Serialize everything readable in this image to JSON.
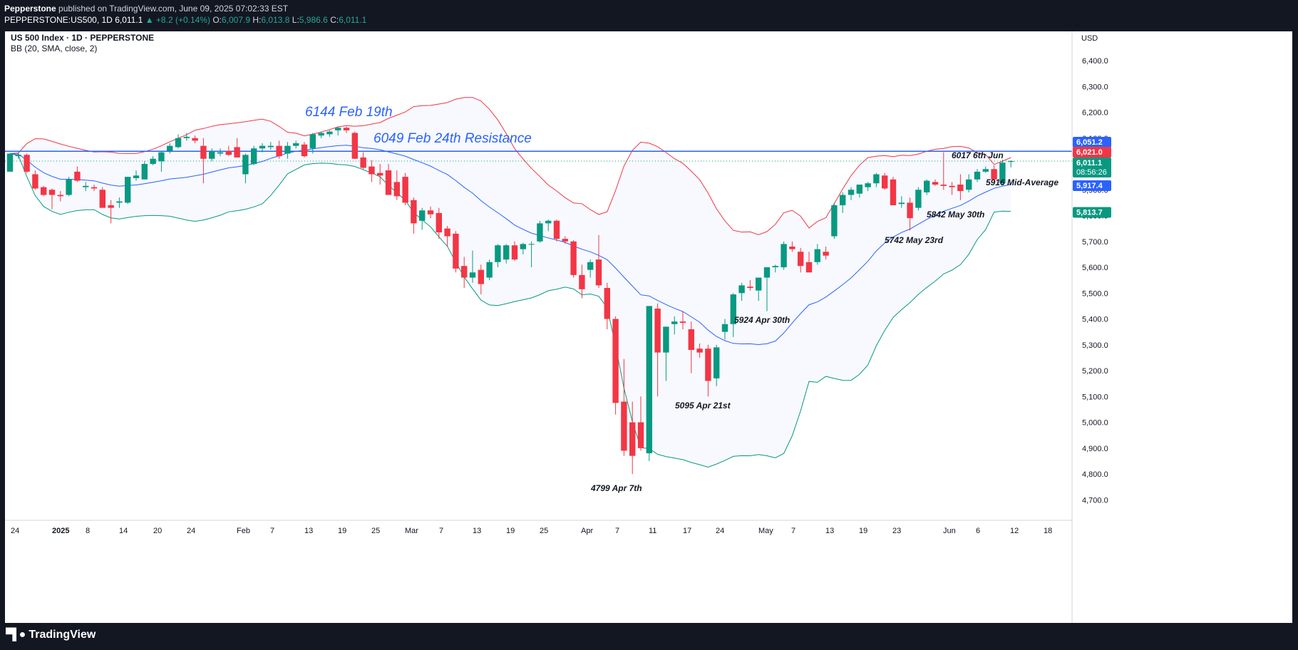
{
  "header": {
    "publisher": "Pepperstone",
    "published_text": "published on TradingView.com, June 09, 2025 07:02:33 EST",
    "symbol": "PEPPERSTONE:US500, 1D",
    "last": "6,011.1",
    "change": "+8.2 (+0.14%)",
    "o_label": "O:",
    "o": "6,007.9",
    "h_label": "H:",
    "h": "6,013.8",
    "l_label": "L:",
    "l": "5,986.6",
    "c_label": "C:",
    "c": "6,011.1"
  },
  "legend": {
    "title": "US 500 Index · 1D · PEPPERSTONE",
    "indicator": "BB (20, SMA, close, 2)"
  },
  "price_axis": {
    "currency": "USD",
    "ticks": [
      "6,400.0",
      "6,300.0",
      "6,200.0",
      "6,100.0",
      "6,000.0",
      "5,900.0",
      "5,800.0",
      "5,700.0",
      "5,600.0",
      "5,500.0",
      "5,400.0",
      "5,300.0",
      "5,200.0",
      "5,100.0",
      "5,000.0",
      "4,900.0",
      "4,800.0",
      "4,700.0"
    ]
  },
  "time_axis": {
    "labels": [
      "24",
      "2025",
      "8",
      "14",
      "20",
      "24",
      "Feb",
      "7",
      "13",
      "19",
      "25",
      "Mar",
      "7",
      "13",
      "19",
      "25",
      "Apr",
      "7",
      "11",
      "17",
      "24",
      "May",
      "7",
      "13",
      "19",
      "23",
      "Jun",
      "6",
      "12",
      "18"
    ]
  },
  "price_tags": [
    {
      "text": "6,051.2",
      "color": "#2962ff"
    },
    {
      "text": "6,021.0",
      "color": "#f23645"
    },
    {
      "text": "6,011.1",
      "color": "#089981",
      "sub": "08:56:26"
    },
    {
      "text": "5,917.4",
      "color": "#2962ff"
    },
    {
      "text": "5,813.7",
      "color": "#089981"
    }
  ],
  "annotations": {
    "feb19": "6144 Feb 19th",
    "resistance": "6049 Feb 24th Resistance",
    "jun6": "6017 6th Jun",
    "midavg": "5916 Mid-Average",
    "may30": "5842 May 30th",
    "may23": "5742 May 23rd",
    "apr30": "5924 Apr 30th",
    "apr21": "5095 Apr 21st",
    "apr7": "4799 Apr 7th"
  },
  "chart_data": {
    "type": "candlestick",
    "title": "US 500 Index · 1D · PEPPERSTONE",
    "ylim": [
      4640,
      6470
    ],
    "resistance_level": 6049,
    "series": [
      {
        "name": "BB (20, SMA, close, 2)",
        "values": "upper/basis/lower bands"
      }
    ],
    "candles": [
      {
        "o": 5970,
        "h": 6040,
        "l": 5970,
        "c": 6040
      },
      {
        "o": 6030,
        "h": 6045,
        "l": 6020,
        "c": 6035
      },
      {
        "o": 6035,
        "h": 6040,
        "l": 5965,
        "c": 5970
      },
      {
        "o": 5960,
        "h": 5975,
        "l": 5900,
        "c": 5905
      },
      {
        "o": 5910,
        "h": 5915,
        "l": 5875,
        "c": 5880
      },
      {
        "o": 5900,
        "h": 5905,
        "l": 5825,
        "c": 5880
      },
      {
        "o": 5880,
        "h": 5895,
        "l": 5855,
        "c": 5875
      },
      {
        "o": 5880,
        "h": 5950,
        "l": 5875,
        "c": 5940
      },
      {
        "o": 5970,
        "h": 5990,
        "l": 5930,
        "c": 5935
      },
      {
        "o": 5910,
        "h": 5930,
        "l": 5895,
        "c": 5915
      },
      {
        "o": 5910,
        "h": 5920,
        "l": 5895,
        "c": 5905
      },
      {
        "o": 5900,
        "h": 5910,
        "l": 5830,
        "c": 5830
      },
      {
        "o": 5840,
        "h": 5860,
        "l": 5770,
        "c": 5830
      },
      {
        "o": 5850,
        "h": 5870,
        "l": 5830,
        "c": 5855
      },
      {
        "o": 5850,
        "h": 5950,
        "l": 5845,
        "c": 5950
      },
      {
        "o": 5945,
        "h": 5975,
        "l": 5935,
        "c": 5955
      },
      {
        "o": 5940,
        "h": 6010,
        "l": 5940,
        "c": 6000
      },
      {
        "o": 6000,
        "h": 6030,
        "l": 5995,
        "c": 6020
      },
      {
        "o": 6010,
        "h": 6050,
        "l": 5970,
        "c": 6045
      },
      {
        "o": 6050,
        "h": 6080,
        "l": 6040,
        "c": 6070
      },
      {
        "o": 6065,
        "h": 6115,
        "l": 6060,
        "c": 6100
      },
      {
        "o": 6100,
        "h": 6120,
        "l": 6090,
        "c": 6105
      },
      {
        "o": 6100,
        "h": 6110,
        "l": 6080,
        "c": 6090
      },
      {
        "o": 6070,
        "h": 6100,
        "l": 5925,
        "c": 6020
      },
      {
        "o": 6020,
        "h": 6060,
        "l": 6010,
        "c": 6050
      },
      {
        "o": 6040,
        "h": 6060,
        "l": 6030,
        "c": 6045
      },
      {
        "o": 6050,
        "h": 6070,
        "l": 6030,
        "c": 6035
      },
      {
        "o": 6065,
        "h": 6100,
        "l": 6030,
        "c": 6025
      },
      {
        "o": 5960,
        "h": 6040,
        "l": 5925,
        "c": 6035
      },
      {
        "o": 6000,
        "h": 6070,
        "l": 5995,
        "c": 6060
      },
      {
        "o": 6060,
        "h": 6080,
        "l": 6045,
        "c": 6070
      },
      {
        "o": 6065,
        "h": 6085,
        "l": 6055,
        "c": 6070
      },
      {
        "o": 6070,
        "h": 6090,
        "l": 6020,
        "c": 6030
      },
      {
        "o": 6040,
        "h": 6085,
        "l": 6020,
        "c": 6070
      },
      {
        "o": 6070,
        "h": 6090,
        "l": 6060,
        "c": 6080
      },
      {
        "o": 6075,
        "h": 6085,
        "l": 6025,
        "c": 6030
      },
      {
        "o": 6060,
        "h": 6120,
        "l": 6040,
        "c": 6115
      },
      {
        "o": 6110,
        "h": 6125,
        "l": 6100,
        "c": 6120
      },
      {
        "o": 6115,
        "h": 6130,
        "l": 6105,
        "c": 6125
      },
      {
        "o": 6130,
        "h": 6144,
        "l": 6110,
        "c": 6140
      },
      {
        "o": 6140,
        "h": 6145,
        "l": 6120,
        "c": 6130
      },
      {
        "o": 6120,
        "h": 6125,
        "l": 6020,
        "c": 6020
      },
      {
        "o": 6025,
        "h": 6045,
        "l": 5980,
        "c": 5985
      },
      {
        "o": 5990,
        "h": 6015,
        "l": 5930,
        "c": 5960
      },
      {
        "o": 5965,
        "h": 6000,
        "l": 5920,
        "c": 5955
      },
      {
        "o": 5975,
        "h": 6000,
        "l": 5880,
        "c": 5880
      },
      {
        "o": 5930,
        "h": 5975,
        "l": 5860,
        "c": 5875
      },
      {
        "o": 5950,
        "h": 5965,
        "l": 5840,
        "c": 5850
      },
      {
        "o": 5860,
        "h": 5870,
        "l": 5730,
        "c": 5770
      },
      {
        "o": 5780,
        "h": 5830,
        "l": 5745,
        "c": 5820
      },
      {
        "o": 5820,
        "h": 5835,
        "l": 5790,
        "c": 5805
      },
      {
        "o": 5810,
        "h": 5830,
        "l": 5710,
        "c": 5735
      },
      {
        "o": 5750,
        "h": 5760,
        "l": 5680,
        "c": 5720
      },
      {
        "o": 5730,
        "h": 5740,
        "l": 5580,
        "c": 5595
      },
      {
        "o": 5605,
        "h": 5640,
        "l": 5520,
        "c": 5560
      },
      {
        "o": 5560,
        "h": 5665,
        "l": 5540,
        "c": 5580
      },
      {
        "o": 5590,
        "h": 5610,
        "l": 5495,
        "c": 5535
      },
      {
        "o": 5560,
        "h": 5630,
        "l": 5550,
        "c": 5620
      },
      {
        "o": 5620,
        "h": 5690,
        "l": 5600,
        "c": 5685
      },
      {
        "o": 5630,
        "h": 5690,
        "l": 5615,
        "c": 5685
      },
      {
        "o": 5685,
        "h": 5700,
        "l": 5625,
        "c": 5630
      },
      {
        "o": 5670,
        "h": 5695,
        "l": 5650,
        "c": 5690
      },
      {
        "o": 5690,
        "h": 5700,
        "l": 5600,
        "c": 5690
      },
      {
        "o": 5700,
        "h": 5780,
        "l": 5695,
        "c": 5770
      },
      {
        "o": 5770,
        "h": 5785,
        "l": 5740,
        "c": 5780
      },
      {
        "o": 5780,
        "h": 5785,
        "l": 5700,
        "c": 5710
      },
      {
        "o": 5710,
        "h": 5720,
        "l": 5690,
        "c": 5700
      },
      {
        "o": 5700,
        "h": 5705,
        "l": 5560,
        "c": 5570
      },
      {
        "o": 5570,
        "h": 5610,
        "l": 5480,
        "c": 5515
      },
      {
        "o": 5590,
        "h": 5630,
        "l": 5560,
        "c": 5620
      },
      {
        "o": 5630,
        "h": 5725,
        "l": 5520,
        "c": 5530
      },
      {
        "o": 5520,
        "h": 5540,
        "l": 5360,
        "c": 5400
      },
      {
        "o": 5400,
        "h": 5410,
        "l": 5030,
        "c": 5075
      },
      {
        "o": 5080,
        "h": 5245,
        "l": 4870,
        "c": 4890
      },
      {
        "o": 5000,
        "h": 5080,
        "l": 4800,
        "c": 4870
      },
      {
        "o": 5000,
        "h": 5100,
        "l": 4890,
        "c": 4900
      },
      {
        "o": 4880,
        "h": 5450,
        "l": 4850,
        "c": 5450
      },
      {
        "o": 5440,
        "h": 5460,
        "l": 5100,
        "c": 5270
      },
      {
        "o": 5270,
        "h": 5370,
        "l": 5160,
        "c": 5370
      },
      {
        "o": 5380,
        "h": 5410,
        "l": 5340,
        "c": 5390
      },
      {
        "o": 5390,
        "h": 5430,
        "l": 5360,
        "c": 5385
      },
      {
        "o": 5360,
        "h": 5390,
        "l": 5190,
        "c": 5280
      },
      {
        "o": 5285,
        "h": 5305,
        "l": 5250,
        "c": 5270
      },
      {
        "o": 5285,
        "h": 5300,
        "l": 5100,
        "c": 5160
      },
      {
        "o": 5170,
        "h": 5300,
        "l": 5140,
        "c": 5290
      },
      {
        "o": 5350,
        "h": 5400,
        "l": 5320,
        "c": 5380
      },
      {
        "o": 5380,
        "h": 5500,
        "l": 5330,
        "c": 5495
      },
      {
        "o": 5500,
        "h": 5540,
        "l": 5470,
        "c": 5530
      },
      {
        "o": 5525,
        "h": 5550,
        "l": 5510,
        "c": 5520
      },
      {
        "o": 5510,
        "h": 5560,
        "l": 5470,
        "c": 5560
      },
      {
        "o": 5560,
        "h": 5600,
        "l": 5430,
        "c": 5600
      },
      {
        "o": 5600,
        "h": 5610,
        "l": 5580,
        "c": 5605
      },
      {
        "o": 5600,
        "h": 5700,
        "l": 5590,
        "c": 5690
      },
      {
        "o": 5680,
        "h": 5700,
        "l": 5660,
        "c": 5670
      },
      {
        "o": 5660,
        "h": 5675,
        "l": 5580,
        "c": 5605
      },
      {
        "o": 5620,
        "h": 5660,
        "l": 5590,
        "c": 5580
      },
      {
        "o": 5620,
        "h": 5690,
        "l": 5610,
        "c": 5670
      },
      {
        "o": 5660,
        "h": 5680,
        "l": 5630,
        "c": 5645
      },
      {
        "o": 5720,
        "h": 5850,
        "l": 5710,
        "c": 5840
      },
      {
        "o": 5840,
        "h": 5890,
        "l": 5810,
        "c": 5880
      },
      {
        "o": 5880,
        "h": 5910,
        "l": 5860,
        "c": 5900
      },
      {
        "o": 5885,
        "h": 5920,
        "l": 5870,
        "c": 5920
      },
      {
        "o": 5910,
        "h": 5930,
        "l": 5895,
        "c": 5925
      },
      {
        "o": 5925,
        "h": 5965,
        "l": 5910,
        "c": 5960
      },
      {
        "o": 5955,
        "h": 5965,
        "l": 5900,
        "c": 5905
      },
      {
        "o": 5940,
        "h": 5950,
        "l": 5840,
        "c": 5840
      },
      {
        "o": 5845,
        "h": 5875,
        "l": 5830,
        "c": 5850
      },
      {
        "o": 5850,
        "h": 5870,
        "l": 5742,
        "c": 5790
      },
      {
        "o": 5830,
        "h": 5910,
        "l": 5820,
        "c": 5900
      },
      {
        "o": 5890,
        "h": 5940,
        "l": 5880,
        "c": 5935
      },
      {
        "o": 5930,
        "h": 5940,
        "l": 5915,
        "c": 5920
      },
      {
        "o": 5920,
        "h": 6045,
        "l": 5900,
        "c": 5915
      },
      {
        "o": 5915,
        "h": 5930,
        "l": 5880,
        "c": 5910
      },
      {
        "o": 5920,
        "h": 5960,
        "l": 5860,
        "c": 5895
      },
      {
        "o": 5900,
        "h": 5960,
        "l": 5890,
        "c": 5940
      },
      {
        "o": 5940,
        "h": 5980,
        "l": 5930,
        "c": 5970
      },
      {
        "o": 5970,
        "h": 5990,
        "l": 5965,
        "c": 5980
      },
      {
        "o": 5980,
        "h": 5995,
        "l": 5930,
        "c": 5940
      },
      {
        "o": 5925,
        "h": 6017,
        "l": 5920,
        "c": 6005
      },
      {
        "o": 6007.9,
        "h": 6013.8,
        "l": 5986.6,
        "c": 6011.1
      }
    ]
  }
}
